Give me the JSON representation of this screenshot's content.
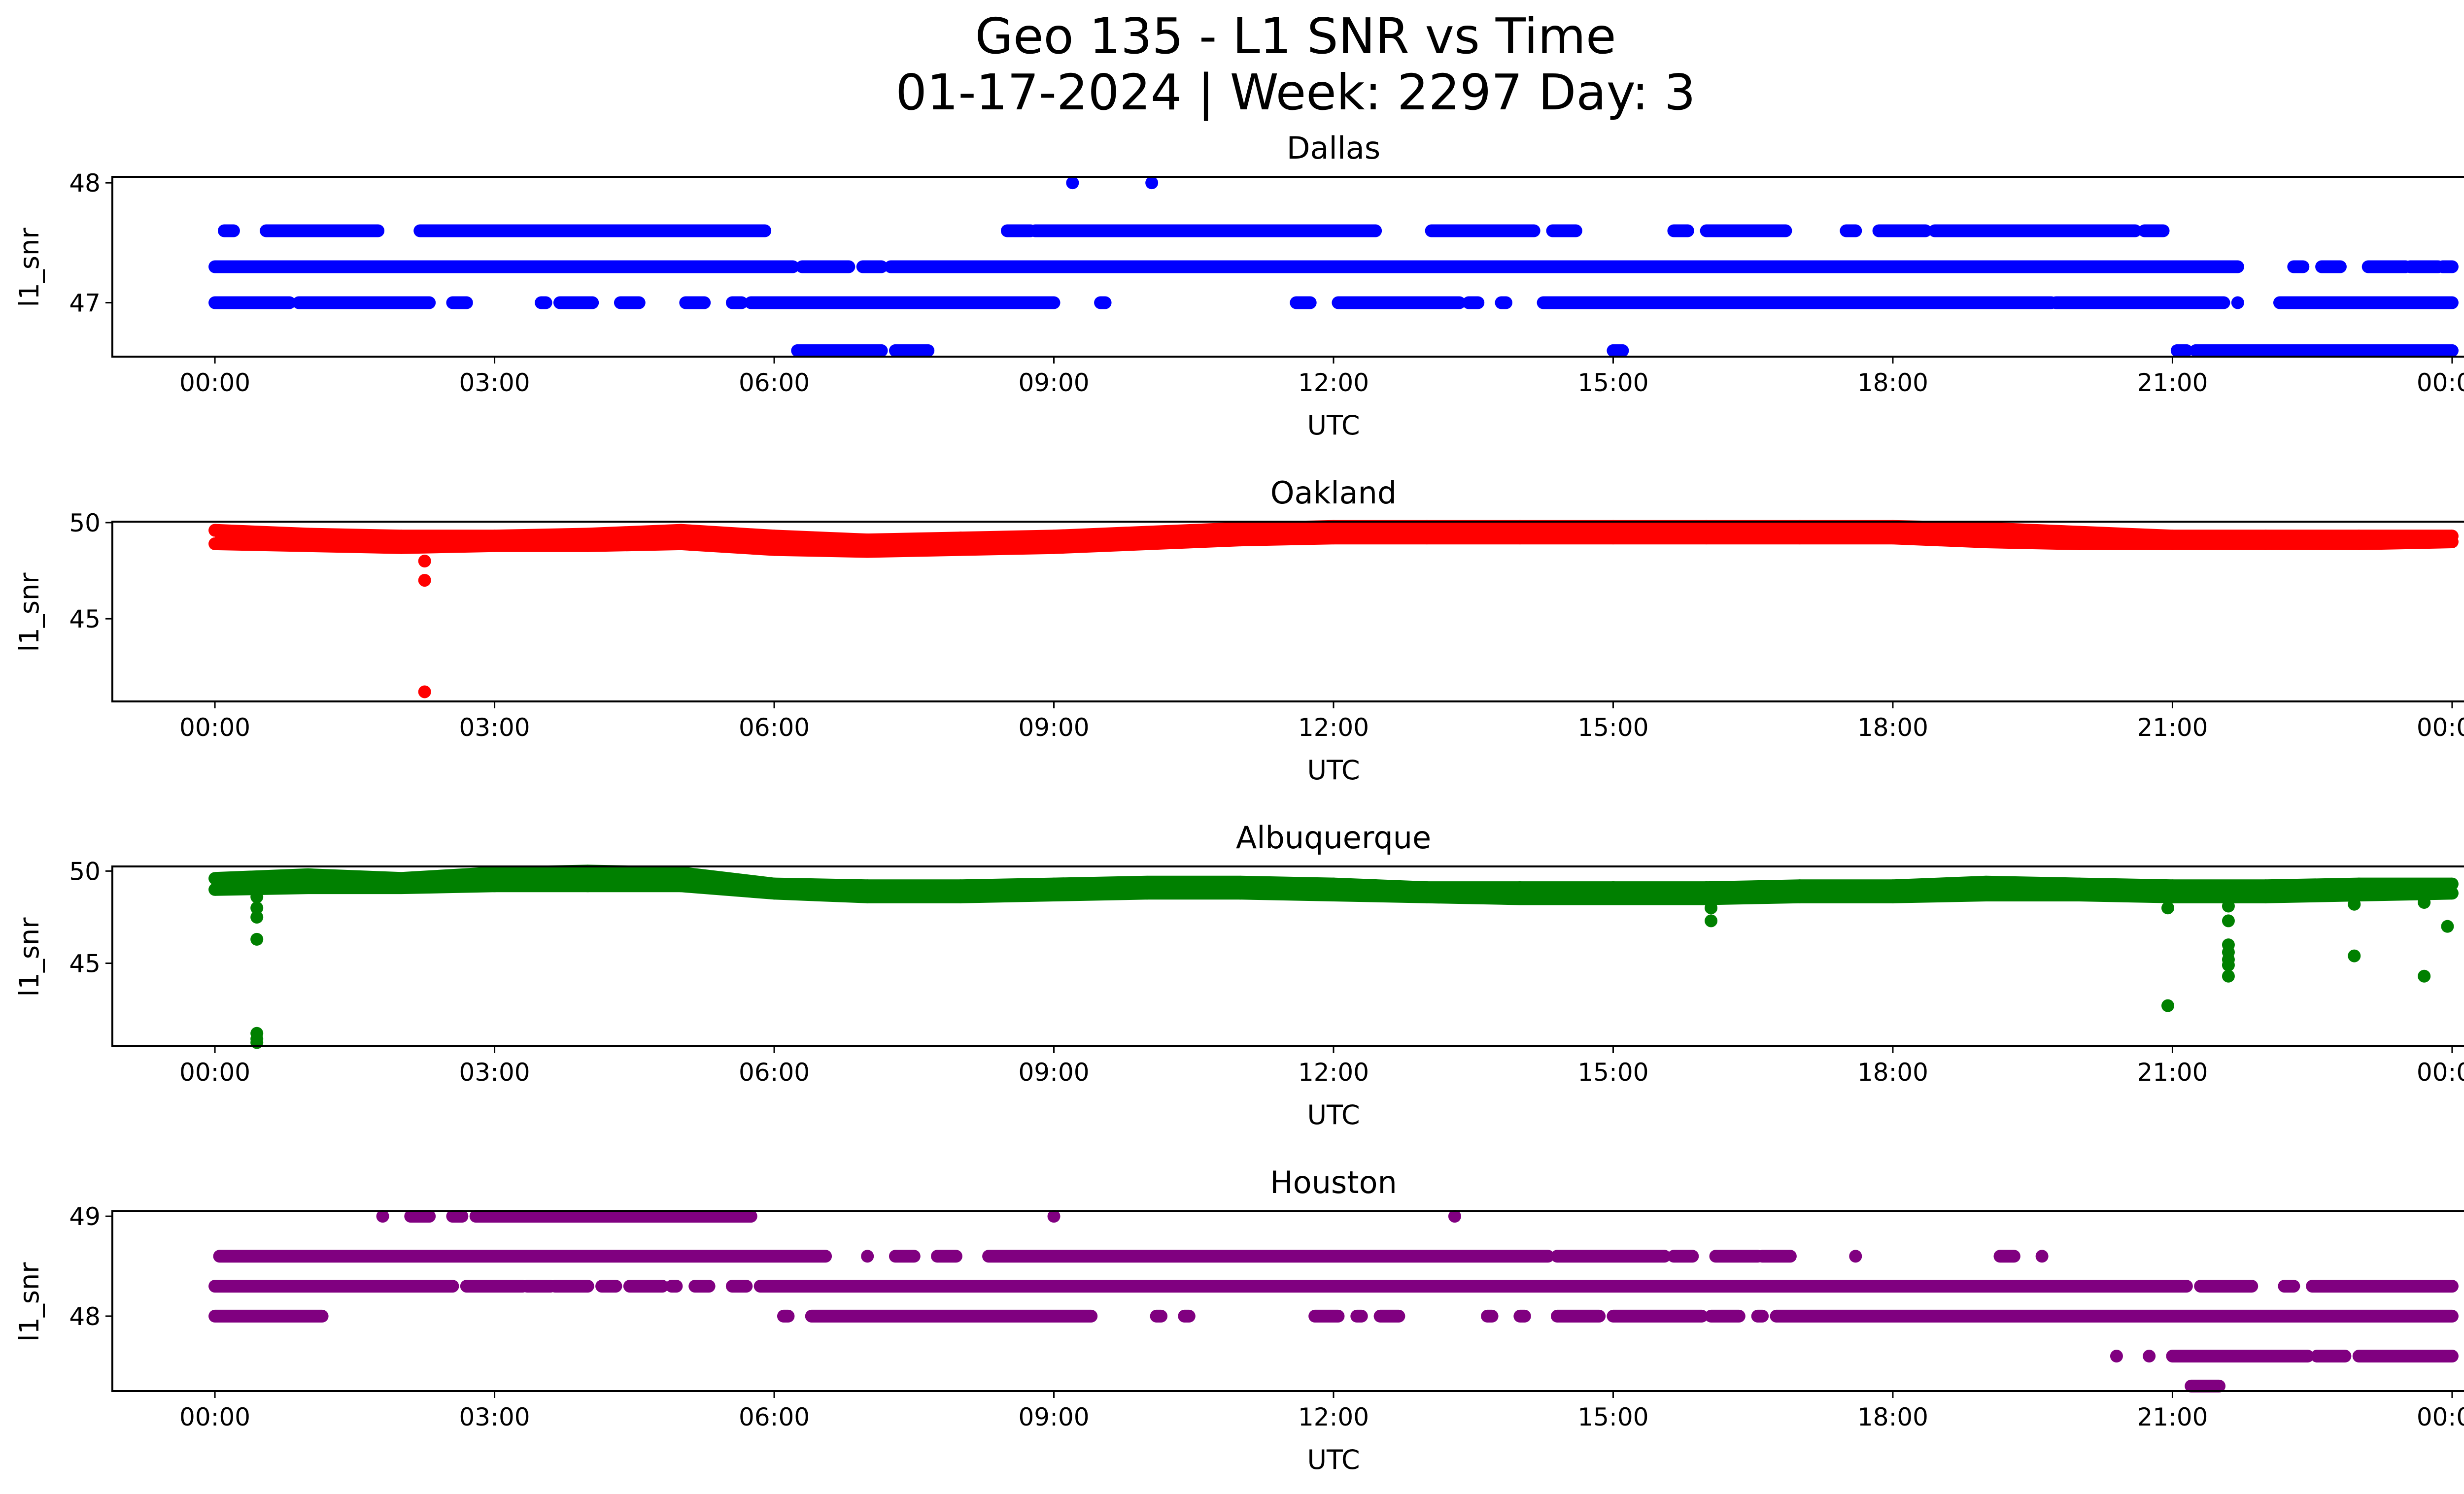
{
  "figure": {
    "title_line1": "Geo 135 - L1 SNR vs Time",
    "title_line2": "01-17-2024 | Week: 2297 Day: 3"
  },
  "chart_data": [
    {
      "type": "scatter",
      "title": "Dallas",
      "xlabel": "UTC",
      "ylabel": "l1_snr",
      "color": "#0000ff",
      "x_unit": "hours since 00:00 UTC",
      "xlim": [
        -1.1,
        25.1
      ],
      "ylim": [
        46.55,
        48.05
      ],
      "xticks": [
        "00:00",
        "03:00",
        "06:00",
        "09:00",
        "12:00",
        "15:00",
        "18:00",
        "21:00",
        "00:00"
      ],
      "yticks": [
        47,
        48
      ],
      "levels": [
        {
          "y": 47.6,
          "segments": [
            [
              0.1,
              0.2
            ],
            [
              0.55,
              1.75
            ],
            [
              2.2,
              5.9
            ],
            [
              8.5,
              8.75
            ],
            [
              8.8,
              12.45
            ],
            [
              13.05,
              14.15
            ],
            [
              14.35,
              14.6
            ],
            [
              15.65,
              15.8
            ],
            [
              16.0,
              16.85
            ],
            [
              17.5,
              17.6
            ],
            [
              17.85,
              18.35
            ],
            [
              18.45,
              20.6
            ],
            [
              20.7,
              20.9
            ]
          ]
        },
        {
          "y": 47.3,
          "segments": [
            [
              0.0,
              6.2
            ],
            [
              6.3,
              6.8
            ],
            [
              6.95,
              7.15
            ],
            [
              7.25,
              21.7
            ],
            [
              22.3,
              22.4
            ],
            [
              22.6,
              22.8
            ],
            [
              23.1,
              23.5
            ],
            [
              23.55,
              23.85
            ],
            [
              23.9,
              24.0
            ]
          ]
        },
        {
          "y": 47.0,
          "segments": [
            [
              0.0,
              0.8
            ],
            [
              0.9,
              2.3
            ],
            [
              2.55,
              2.7
            ],
            [
              3.5,
              3.55
            ],
            [
              3.7,
              4.05
            ],
            [
              4.35,
              4.55
            ],
            [
              5.05,
              5.25
            ],
            [
              5.55,
              5.65
            ],
            [
              5.75,
              9.0
            ],
            [
              9.5,
              9.55
            ],
            [
              11.6,
              11.75
            ],
            [
              12.05,
              13.35
            ],
            [
              13.45,
              13.55
            ],
            [
              13.8,
              13.85
            ],
            [
              14.25,
              19.7
            ],
            [
              19.75,
              21.55
            ],
            [
              21.7,
              21.7
            ],
            [
              22.15,
              24.0
            ]
          ]
        },
        {
          "y": 46.6,
          "segments": [
            [
              6.25,
              7.15
            ],
            [
              7.3,
              7.65
            ],
            [
              15.0,
              15.1
            ],
            [
              21.05,
              21.15
            ],
            [
              21.25,
              24.0
            ]
          ]
        },
        {
          "y": 48.0,
          "segments": [
            [
              9.2,
              9.2
            ],
            [
              10.05,
              10.05
            ]
          ]
        }
      ],
      "points": []
    },
    {
      "type": "scatter",
      "title": "Oakland",
      "xlabel": "UTC",
      "ylabel": "l1_snr",
      "color": "#ff0000",
      "x_unit": "hours since 00:00 UTC",
      "xlim": [
        -1.1,
        25.1
      ],
      "ylim": [
        40.7,
        50.05
      ],
      "xticks": [
        "00:00",
        "03:00",
        "06:00",
        "09:00",
        "12:00",
        "15:00",
        "18:00",
        "21:00",
        "00:00"
      ],
      "yticks": [
        45,
        50
      ],
      "band": {
        "x": [
          0,
          1,
          2,
          3,
          4,
          5,
          6,
          7,
          8,
          9,
          10,
          11,
          12,
          13,
          14,
          15,
          16,
          17,
          18,
          19,
          20,
          21,
          22,
          23,
          24
        ],
        "lo": [
          48.9,
          48.8,
          48.7,
          48.8,
          48.8,
          48.9,
          48.6,
          48.5,
          48.6,
          48.7,
          48.9,
          49.1,
          49.2,
          49.2,
          49.2,
          49.2,
          49.2,
          49.2,
          49.2,
          49.0,
          48.9,
          48.9,
          48.9,
          48.9,
          49.0
        ],
        "hi": [
          49.6,
          49.4,
          49.3,
          49.3,
          49.4,
          49.6,
          49.3,
          49.1,
          49.2,
          49.3,
          49.5,
          49.7,
          49.8,
          49.8,
          49.8,
          49.8,
          49.8,
          49.8,
          49.8,
          49.7,
          49.5,
          49.3,
          49.3,
          49.3,
          49.3
        ]
      },
      "points": [
        {
          "x": 2.25,
          "y": 48.0
        },
        {
          "x": 2.25,
          "y": 47.0
        },
        {
          "x": 2.25,
          "y": 41.2
        }
      ]
    },
    {
      "type": "scatter",
      "title": "Albuquerque",
      "xlabel": "UTC",
      "ylabel": "l1_snr",
      "color": "#008000",
      "x_unit": "hours since 00:00 UTC",
      "xlim": [
        -1.1,
        25.1
      ],
      "ylim": [
        40.5,
        50.25
      ],
      "xticks": [
        "00:00",
        "03:00",
        "06:00",
        "09:00",
        "12:00",
        "15:00",
        "18:00",
        "21:00",
        "00:00"
      ],
      "yticks": [
        45,
        50
      ],
      "band": {
        "x": [
          0,
          1,
          2,
          3,
          4,
          5,
          6,
          7,
          8,
          9,
          10,
          11,
          12,
          13,
          14,
          15,
          16,
          17,
          18,
          19,
          20,
          21,
          22,
          23,
          24
        ],
        "lo": [
          49.0,
          49.1,
          49.1,
          49.2,
          49.2,
          49.2,
          48.8,
          48.6,
          48.6,
          48.7,
          48.8,
          48.8,
          48.7,
          48.6,
          48.5,
          48.5,
          48.5,
          48.6,
          48.6,
          48.7,
          48.7,
          48.6,
          48.6,
          48.7,
          48.8
        ],
        "hi": [
          49.6,
          49.8,
          49.6,
          49.9,
          50.0,
          49.9,
          49.3,
          49.2,
          49.2,
          49.3,
          49.4,
          49.4,
          49.3,
          49.1,
          49.1,
          49.1,
          49.1,
          49.2,
          49.2,
          49.4,
          49.3,
          49.2,
          49.2,
          49.3,
          49.3
        ]
      },
      "points": [
        {
          "x": 0.45,
          "y": 48.6
        },
        {
          "x": 0.45,
          "y": 48.0
        },
        {
          "x": 0.45,
          "y": 47.5
        },
        {
          "x": 0.45,
          "y": 46.3
        },
        {
          "x": 0.45,
          "y": 41.2
        },
        {
          "x": 0.45,
          "y": 40.9
        },
        {
          "x": 0.45,
          "y": 40.7
        },
        {
          "x": 16.05,
          "y": 48.0
        },
        {
          "x": 16.05,
          "y": 47.3
        },
        {
          "x": 20.95,
          "y": 48.0
        },
        {
          "x": 20.95,
          "y": 42.7
        },
        {
          "x": 21.6,
          "y": 48.1
        },
        {
          "x": 21.6,
          "y": 47.3
        },
        {
          "x": 21.6,
          "y": 46.0
        },
        {
          "x": 21.6,
          "y": 45.6
        },
        {
          "x": 21.6,
          "y": 45.2
        },
        {
          "x": 21.6,
          "y": 44.9
        },
        {
          "x": 21.6,
          "y": 44.3
        },
        {
          "x": 22.95,
          "y": 48.2
        },
        {
          "x": 22.95,
          "y": 45.4
        },
        {
          "x": 23.7,
          "y": 48.3
        },
        {
          "x": 23.7,
          "y": 44.3
        },
        {
          "x": 23.95,
          "y": 47.0
        }
      ]
    },
    {
      "type": "scatter",
      "title": "Houston",
      "xlabel": "UTC",
      "ylabel": "l1_snr",
      "color": "#800080",
      "x_unit": "hours since 00:00 UTC",
      "xlim": [
        -1.1,
        25.1
      ],
      "ylim": [
        47.25,
        49.05
      ],
      "xticks": [
        "00:00",
        "03:00",
        "06:00",
        "09:00",
        "12:00",
        "15:00",
        "18:00",
        "21:00",
        "00:00"
      ],
      "yticks": [
        48,
        49
      ],
      "levels": [
        {
          "y": 49.0,
          "segments": [
            [
              1.8,
              1.8
            ],
            [
              2.1,
              2.3
            ],
            [
              2.55,
              2.65
            ],
            [
              2.8,
              5.75
            ],
            [
              9.0,
              9.0
            ],
            [
              13.3,
              13.3
            ]
          ]
        },
        {
          "y": 48.6,
          "segments": [
            [
              0.05,
              6.55
            ],
            [
              7.0,
              7.0
            ],
            [
              7.3,
              7.5
            ],
            [
              7.75,
              7.95
            ],
            [
              8.3,
              14.3
            ],
            [
              14.4,
              15.55
            ],
            [
              15.65,
              15.85
            ],
            [
              16.1,
              16.55
            ],
            [
              16.6,
              16.9
            ],
            [
              17.6,
              17.6
            ],
            [
              19.15,
              19.3
            ],
            [
              19.6,
              19.6
            ]
          ]
        },
        {
          "y": 48.3,
          "segments": [
            [
              0.0,
              2.55
            ],
            [
              2.7,
              3.3
            ],
            [
              3.35,
              3.6
            ],
            [
              3.65,
              4.0
            ],
            [
              4.15,
              4.3
            ],
            [
              4.45,
              4.8
            ],
            [
              4.9,
              4.95
            ],
            [
              5.15,
              5.3
            ],
            [
              5.55,
              5.7
            ],
            [
              5.85,
              21.15
            ],
            [
              21.3,
              21.85
            ],
            [
              22.2,
              22.3
            ],
            [
              22.5,
              24.0
            ]
          ]
        },
        {
          "y": 48.0,
          "segments": [
            [
              0.0,
              1.15
            ],
            [
              6.1,
              6.15
            ],
            [
              6.4,
              9.4
            ],
            [
              10.1,
              10.15
            ],
            [
              10.4,
              10.45
            ],
            [
              11.8,
              12.05
            ],
            [
              12.25,
              12.3
            ],
            [
              12.5,
              12.7
            ],
            [
              13.65,
              13.7
            ],
            [
              14.0,
              14.05
            ],
            [
              14.4,
              14.85
            ],
            [
              15.0,
              15.95
            ],
            [
              16.05,
              16.35
            ],
            [
              16.55,
              16.6
            ],
            [
              16.75,
              24.0
            ]
          ]
        },
        {
          "y": 47.6,
          "segments": [
            [
              20.4,
              20.4
            ],
            [
              20.75,
              20.75
            ],
            [
              21.0,
              22.45
            ],
            [
              22.55,
              22.85
            ],
            [
              23.0,
              24.0
            ]
          ]
        },
        {
          "y": 47.3,
          "segments": [
            [
              21.2,
              21.5
            ]
          ]
        }
      ],
      "points": []
    }
  ]
}
